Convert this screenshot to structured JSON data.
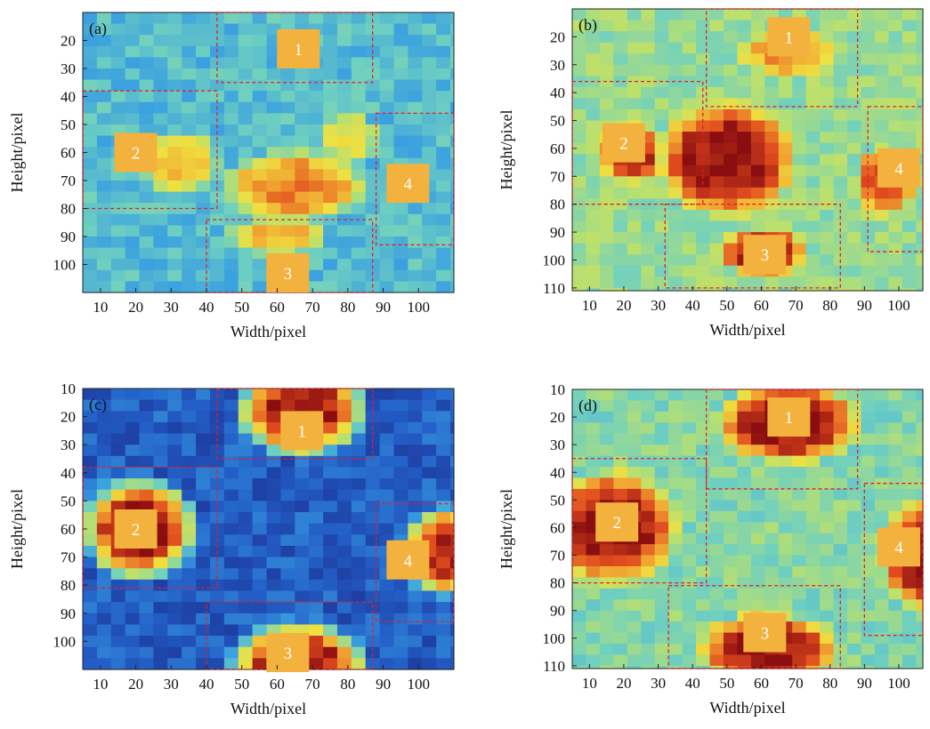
{
  "colors": {
    "colormap": [
      "#1a2a8c",
      "#2360c8",
      "#3aa0e0",
      "#6fd0c0",
      "#b8e070",
      "#f0e040",
      "#f0a030",
      "#e04a1e",
      "#8a0e10"
    ],
    "region_box": "#e0202a",
    "zone_marker": "#f3b23e"
  },
  "chart_data": [
    {
      "type": "heatmap",
      "panel_label": "(a)",
      "xlabel": "Width/pixel",
      "ylabel": "Height/pixel",
      "xlim": [
        5,
        110
      ],
      "ylim": [
        10,
        110
      ],
      "xticks": [
        10,
        20,
        30,
        40,
        50,
        60,
        70,
        80,
        90,
        100
      ],
      "yticks": [
        20,
        30,
        40,
        50,
        60,
        70,
        80,
        90,
        100
      ],
      "hot_spots": [
        {
          "x": 33,
          "y": 64,
          "level": 0.72,
          "sx": 12,
          "sy": 12
        },
        {
          "x": 65,
          "y": 72,
          "level": 0.78,
          "sx": 22,
          "sy": 14
        },
        {
          "x": 60,
          "y": 90,
          "level": 0.7,
          "sx": 16,
          "sy": 8
        },
        {
          "x": 80,
          "y": 55,
          "level": 0.6,
          "sx": 10,
          "sy": 12
        }
      ],
      "base_level": 0.32,
      "regions": [
        {
          "label": "1",
          "x0": 43,
          "x1": 87,
          "y0": 10,
          "y1": 35,
          "mx": 66,
          "my": 23
        },
        {
          "label": "2",
          "x0": 5,
          "x1": 43,
          "y0": 38,
          "y1": 80,
          "mx": 20,
          "my": 60
        },
        {
          "label": "3",
          "x0": 40,
          "x1": 87,
          "y0": 84,
          "y1": 110,
          "mx": 63,
          "my": 103
        },
        {
          "label": "4",
          "x0": 88,
          "x1": 110,
          "y0": 46,
          "y1": 93,
          "mx": 97,
          "my": 71
        }
      ]
    },
    {
      "type": "heatmap",
      "panel_label": "(b)",
      "xlabel": "Width/pixel",
      "ylabel": "Height/pixel",
      "xlim": [
        5,
        107
      ],
      "ylim": [
        10,
        111
      ],
      "xticks": [
        10,
        20,
        30,
        40,
        50,
        60,
        70,
        80,
        90,
        100
      ],
      "yticks": [
        20,
        30,
        40,
        50,
        60,
        70,
        80,
        90,
        100,
        110
      ],
      "hot_spots": [
        {
          "x": 50,
          "y": 64,
          "level": 1.0,
          "sx": 22,
          "sy": 22
        },
        {
          "x": 22,
          "y": 62,
          "level": 0.95,
          "sx": 10,
          "sy": 12
        },
        {
          "x": 60,
          "y": 97,
          "level": 0.95,
          "sx": 14,
          "sy": 10
        },
        {
          "x": 96,
          "y": 72,
          "level": 0.9,
          "sx": 10,
          "sy": 14
        },
        {
          "x": 68,
          "y": 26,
          "level": 0.75,
          "sx": 18,
          "sy": 10
        }
      ],
      "base_level": 0.45,
      "regions": [
        {
          "label": "1",
          "x0": 44,
          "x1": 88,
          "y0": 10,
          "y1": 45,
          "mx": 68,
          "my": 20
        },
        {
          "label": "2",
          "x0": 5,
          "x1": 43,
          "y0": 36,
          "y1": 80,
          "mx": 20,
          "my": 58
        },
        {
          "label": "3",
          "x0": 32,
          "x1": 83,
          "y0": 80,
          "y1": 110,
          "mx": 61,
          "my": 98
        },
        {
          "label": "4",
          "x0": 91,
          "x1": 107,
          "y0": 45,
          "y1": 97,
          "mx": 100,
          "my": 67
        }
      ]
    },
    {
      "type": "heatmap",
      "panel_label": "(c)",
      "xlabel": "Width/pixel",
      "ylabel": "Height/pixel",
      "xlim": [
        5,
        110
      ],
      "ylim": [
        10,
        110
      ],
      "xticks": [
        10,
        20,
        30,
        40,
        50,
        60,
        70,
        80,
        90,
        100
      ],
      "yticks": [
        10,
        20,
        30,
        40,
        50,
        60,
        70,
        80,
        90,
        100
      ],
      "hot_spots": [
        {
          "x": 67,
          "y": 18,
          "level": 1.0,
          "sx": 17,
          "sy": 15
        },
        {
          "x": 21,
          "y": 60,
          "level": 1.0,
          "sx": 15,
          "sy": 17
        },
        {
          "x": 66,
          "y": 108,
          "level": 1.0,
          "sx": 18,
          "sy": 14
        },
        {
          "x": 108,
          "y": 68,
          "level": 0.95,
          "sx": 12,
          "sy": 15
        }
      ],
      "base_level": 0.12,
      "regions": [
        {
          "label": "1",
          "x0": 43,
          "x1": 87,
          "y0": 10,
          "y1": 35,
          "mx": 67,
          "my": 25
        },
        {
          "label": "2",
          "x0": 5,
          "x1": 43,
          "y0": 38,
          "y1": 81,
          "mx": 20,
          "my": 60
        },
        {
          "label": "3",
          "x0": 40,
          "x1": 87,
          "y0": 86,
          "y1": 110,
          "mx": 63,
          "my": 104
        },
        {
          "label": "4",
          "x0": 88,
          "x1": 110,
          "y0": 51,
          "y1": 93,
          "mx": 97,
          "my": 71
        }
      ]
    },
    {
      "type": "heatmap",
      "panel_label": "(d)",
      "xlabel": "Width/pixel",
      "ylabel": "Height/pixel",
      "xlim": [
        5,
        107
      ],
      "ylim": [
        10,
        111
      ],
      "xticks": [
        10,
        20,
        30,
        40,
        50,
        60,
        70,
        80,
        90,
        100
      ],
      "yticks": [
        10,
        20,
        30,
        40,
        50,
        60,
        70,
        80,
        90,
        100,
        110
      ],
      "hot_spots": [
        {
          "x": 68,
          "y": 22,
          "level": 1.0,
          "sx": 22,
          "sy": 16
        },
        {
          "x": 17,
          "y": 60,
          "level": 1.0,
          "sx": 20,
          "sy": 22
        },
        {
          "x": 62,
          "y": 104,
          "level": 1.0,
          "sx": 22,
          "sy": 14
        },
        {
          "x": 108,
          "y": 70,
          "level": 1.0,
          "sx": 14,
          "sy": 22
        }
      ],
      "base_level": 0.42,
      "regions": [
        {
          "label": "1",
          "x0": 44,
          "x1": 88,
          "y0": 10,
          "y1": 46,
          "mx": 68,
          "my": 20
        },
        {
          "label": "2",
          "x0": 5,
          "x1": 44,
          "y0": 35,
          "y1": 80,
          "mx": 18,
          "my": 58
        },
        {
          "label": "3",
          "x0": 33,
          "x1": 83,
          "y0": 81,
          "y1": 111,
          "mx": 61,
          "my": 98
        },
        {
          "label": "4",
          "x0": 90,
          "x1": 107,
          "y0": 44,
          "y1": 99,
          "mx": 100,
          "my": 67
        }
      ]
    }
  ]
}
